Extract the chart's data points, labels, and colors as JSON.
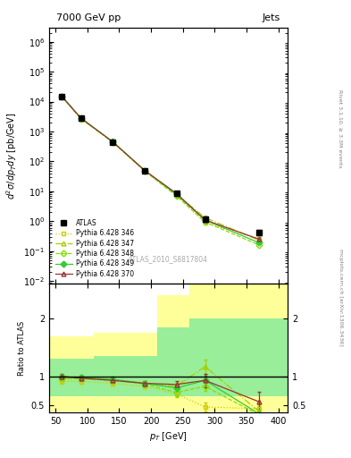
{
  "title_left": "7000 GeV pp",
  "title_right": "Jets",
  "watermark": "ATLAS_2010_S8817804",
  "right_label_top": "Rivet 3.1.10, ≥ 3.3M events",
  "right_label_bot": "mcplots.cern.ch [arXiv:1306.3436]",
  "ylabel_main": "$d^2\\sigma/dp_Tdy$ [pb/GeV]",
  "ylabel_ratio": "Ratio to ATLAS",
  "xlabel": "$p_T$ [GeV]",
  "xlim": [
    40,
    415
  ],
  "ylim_main": [
    0.008,
    3000000
  ],
  "ylim_ratio": [
    0.38,
    2.6
  ],
  "pt_values": [
    60,
    90,
    140,
    190,
    240,
    285,
    370
  ],
  "atlas_y": [
    15000,
    2800,
    450,
    50,
    8.5,
    1.2,
    0.42
  ],
  "atlas_yerr": [
    2000,
    300,
    50,
    6,
    1.0,
    0.2,
    0.08
  ],
  "series": [
    {
      "label": "Pythia 6.428 346",
      "color": "#cccc00",
      "linestyle": "dotted",
      "marker": "s",
      "filled": false,
      "y": [
        14200,
        2650,
        430,
        48,
        7.2,
        0.88,
        0.26
      ],
      "ratio_y": [
        0.92,
        0.91,
        0.88,
        0.83,
        0.7,
        0.47,
        0.44
      ],
      "ratio_yerr": [
        0.04,
        0.04,
        0.04,
        0.04,
        0.06,
        0.07,
        0.08
      ]
    },
    {
      "label": "Pythia 6.428 347",
      "color": "#aacc00",
      "linestyle": "dashdot",
      "marker": "^",
      "filled": false,
      "y": [
        14500,
        2700,
        440,
        49,
        7.8,
        1.32,
        0.23
      ],
      "ratio_y": [
        0.97,
        0.96,
        0.94,
        0.88,
        0.83,
        1.17,
        0.39
      ],
      "ratio_yerr": [
        0.04,
        0.04,
        0.04,
        0.04,
        0.06,
        0.12,
        0.1
      ]
    },
    {
      "label": "Pythia 6.428 348",
      "color": "#88dd00",
      "linestyle": "dashed",
      "marker": "D",
      "filled": false,
      "y": [
        14500,
        2700,
        440,
        48,
        7.0,
        0.95,
        0.16
      ],
      "ratio_y": [
        0.97,
        0.96,
        0.93,
        0.87,
        0.72,
        0.83,
        0.33
      ],
      "ratio_yerr": [
        0.04,
        0.04,
        0.04,
        0.04,
        0.06,
        0.08,
        0.08
      ]
    },
    {
      "label": "Pythia 6.428 349",
      "color": "#33cc33",
      "linestyle": "solid",
      "marker": "D",
      "filled": true,
      "y": [
        14800,
        2750,
        455,
        50,
        7.8,
        1.1,
        0.19
      ],
      "ratio_y": [
        0.99,
        0.98,
        0.95,
        0.88,
        0.8,
        0.93,
        0.35
      ],
      "ratio_yerr": [
        0.04,
        0.04,
        0.04,
        0.04,
        0.06,
        0.08,
        0.08
      ]
    },
    {
      "label": "Pythia 6.428 370",
      "color": "#993333",
      "linestyle": "solid",
      "marker": "^",
      "filled": false,
      "y": [
        15000,
        2800,
        450,
        50,
        8.5,
        1.1,
        0.25
      ],
      "ratio_y": [
        1.0,
        0.97,
        0.93,
        0.88,
        0.86,
        0.93,
        0.56
      ],
      "ratio_yerr": [
        0.04,
        0.04,
        0.04,
        0.04,
        0.06,
        0.12,
        0.18
      ]
    }
  ],
  "band_yellow_tops": [
    1.7,
    1.7,
    1.75,
    1.75,
    2.4,
    2.6,
    2.6
  ],
  "band_yellow_bots": [
    0.4,
    0.4,
    0.4,
    0.4,
    0.4,
    0.4,
    0.4
  ],
  "band_green_tops": [
    1.3,
    1.3,
    1.35,
    1.35,
    1.85,
    2.0,
    2.0
  ],
  "band_green_bots": [
    0.65,
    0.65,
    0.65,
    0.65,
    0.65,
    0.65,
    0.65
  ],
  "band_edges": [
    40,
    70,
    110,
    160,
    210,
    260,
    310,
    415
  ]
}
